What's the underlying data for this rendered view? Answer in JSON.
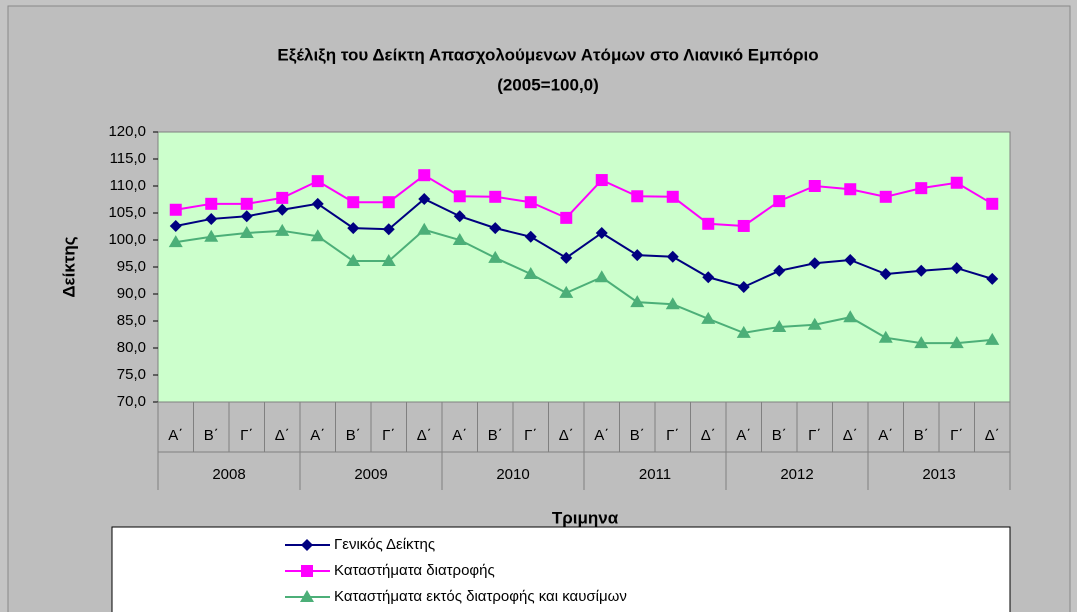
{
  "chart_data": {
    "type": "line",
    "title": "Εξέλιξη του Δείκτη Απασχολούμενων Ατόμων στο Λιανικό Εμπόριο",
    "subtitle": "(2005=100,0)",
    "y_label": "Δείκτης",
    "x_label": "Τριμηνα",
    "categories": [
      "Α΄",
      "Β΄",
      "Γ΄",
      "Δ΄",
      "Α΄",
      "Β΄",
      "Γ΄",
      "Δ΄",
      "Α΄",
      "Β΄",
      "Γ΄",
      "Δ΄",
      "Α΄",
      "Β΄",
      "Γ΄",
      "Δ΄",
      "Α΄",
      "Β΄",
      "Γ΄",
      "Δ΄",
      "Α΄",
      "Β΄",
      "Γ΄",
      "Δ΄"
    ],
    "groups": [
      "2008",
      "2009",
      "2010",
      "2011",
      "2012",
      "2013"
    ],
    "ylim": [
      70,
      120
    ],
    "yticks": [
      {
        "value": 70,
        "label": "70,0"
      },
      {
        "value": 75,
        "label": "75,0"
      },
      {
        "value": 80,
        "label": "80,0"
      },
      {
        "value": 85,
        "label": "85,0"
      },
      {
        "value": 90,
        "label": "90,0"
      },
      {
        "value": 95,
        "label": "95,0"
      },
      {
        "value": 100,
        "label": "100,0"
      },
      {
        "value": 105,
        "label": "105,0"
      },
      {
        "value": 110,
        "label": "110,0"
      },
      {
        "value": 115,
        "label": "115,0"
      },
      {
        "value": 120,
        "label": "120,0"
      }
    ],
    "grid": false,
    "legend": "bottom",
    "series": [
      {
        "name": "Γενικός Δείκτης",
        "color": "#000080",
        "marker": "diamond",
        "values": [
          102.6,
          103.9,
          104.4,
          105.6,
          106.7,
          102.2,
          102.0,
          107.6,
          104.4,
          102.2,
          100.6,
          96.7,
          101.3,
          97.2,
          96.9,
          93.1,
          91.3,
          94.3,
          95.7,
          96.3,
          93.7,
          94.3,
          94.8,
          92.8
        ]
      },
      {
        "name": "Καταστήματα διατροφής",
        "color": "#ff00ff",
        "marker": "square",
        "values": [
          105.6,
          106.7,
          106.7,
          107.8,
          110.9,
          107.0,
          107.0,
          112.0,
          108.1,
          108.0,
          107.0,
          104.1,
          111.1,
          108.1,
          108.0,
          103.0,
          102.6,
          107.2,
          110.0,
          109.4,
          108.0,
          109.6,
          110.6,
          106.7
        ]
      },
      {
        "name": "Καταστήματα εκτός διατροφής και καυσίμων",
        "color": "#4caf78",
        "marker": "triangle",
        "values": [
          99.6,
          100.6,
          101.3,
          101.7,
          100.7,
          96.1,
          96.1,
          101.9,
          100.0,
          96.7,
          93.7,
          90.2,
          93.1,
          88.5,
          88.1,
          85.4,
          82.8,
          83.9,
          84.3,
          85.7,
          81.9,
          80.9,
          80.9,
          81.5
        ]
      }
    ]
  }
}
